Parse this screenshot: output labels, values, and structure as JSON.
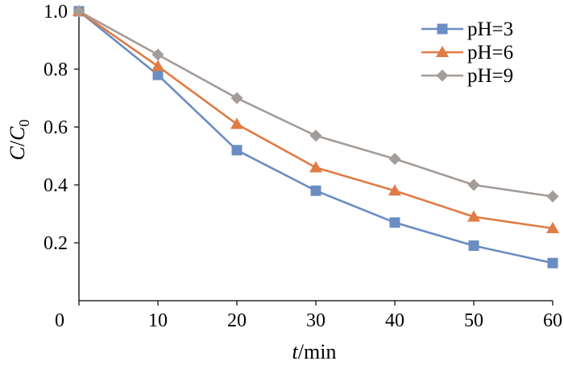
{
  "chart_data": {
    "type": "line",
    "xlabel": {
      "var": "t",
      "unit": "/min"
    },
    "ylabel": {
      "var": "C",
      "slash": "/",
      "var2": "C",
      "sub": "0"
    },
    "xlim": [
      0,
      60
    ],
    "ylim": [
      0,
      1.0
    ],
    "x_ticks": [
      "0",
      "10",
      "20",
      "30",
      "40",
      "50",
      "60"
    ],
    "y_ticks": [
      "0.2",
      "0.4",
      "0.6",
      "0.8",
      "1.0"
    ],
    "x": [
      0,
      10,
      20,
      30,
      40,
      50,
      60
    ],
    "series": [
      {
        "name": "pH=3",
        "values": [
          1.0,
          0.78,
          0.52,
          0.38,
          0.27,
          0.19,
          0.13
        ],
        "color": "#6a8dc2",
        "marker": "square"
      },
      {
        "name": "pH=6",
        "values": [
          1.0,
          0.81,
          0.61,
          0.46,
          0.38,
          0.29,
          0.25
        ],
        "color": "#e07b45",
        "marker": "triangle"
      },
      {
        "name": "pH=9",
        "values": [
          1.0,
          0.85,
          0.7,
          0.57,
          0.49,
          0.4,
          0.36
        ],
        "color": "#a39c98",
        "marker": "diamond"
      }
    ],
    "legend_position": "top-right",
    "grid": false
  }
}
